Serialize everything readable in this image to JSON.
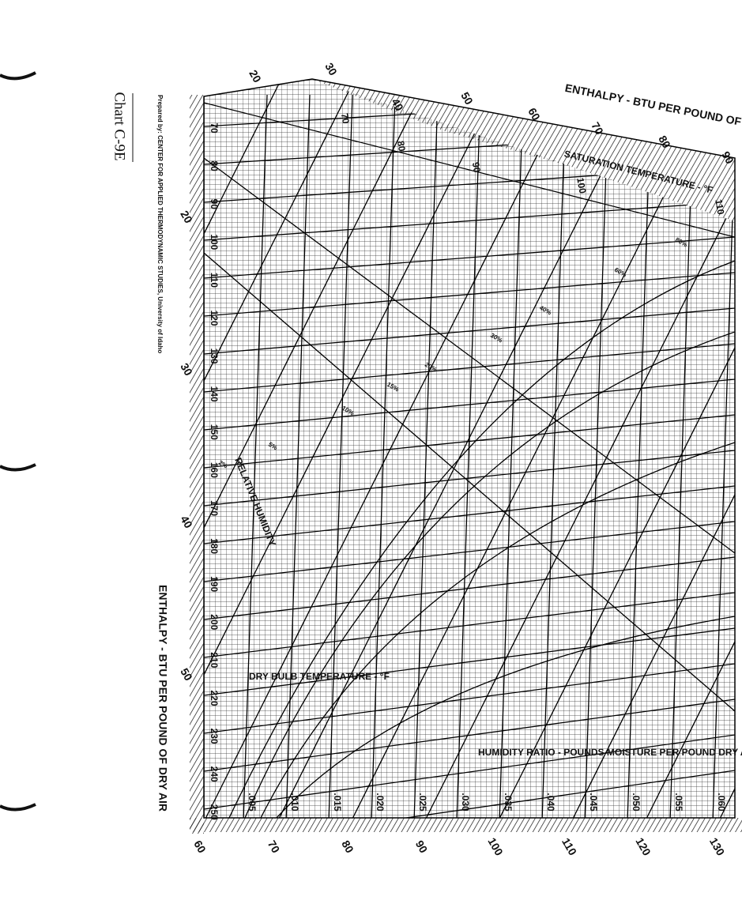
{
  "header": {
    "title": "Chart C-9E",
    "prepared_by": "Prepared by:  CENTER FOR APPLIED THERMODYNAMIC STUDIES, University of Idaho"
  },
  "labels": {
    "enthalpy_top": "ENTHALPY - BTU PER POUND OF",
    "enthalpy_side": "ENTHALPY - BTU PER POUND OF DRY AIR",
    "saturation": "SATURATION TEMPERATURE - °F",
    "relative_humidity": "RELATIVE HUMIDITY",
    "dry_bulb": "DRY BULB TEMPERATURE - °F",
    "humidity_ratio": "HUMIDITY RATIO - POUNDS MOISTURE PER POUND DRY AIR"
  },
  "dry_bulb_ticks": [
    "70",
    "80",
    "90",
    "100",
    "110",
    "120",
    "130",
    "140",
    "150",
    "160",
    "170",
    "180",
    "190",
    "200",
    "210",
    "220",
    "230",
    "240",
    "250"
  ],
  "enthalpy_top_ticks": [
    "20",
    "30",
    "40",
    "50",
    "60",
    "70",
    "80",
    "90"
  ],
  "enthalpy_left_ticks": [
    "20",
    "30",
    "40",
    "50"
  ],
  "enthalpy_bottom_ticks": [
    "60",
    "70",
    "80",
    "90",
    "100",
    "110",
    "120",
    "130"
  ],
  "humidity_ratio_ticks": [
    ".005",
    ".010",
    ".015",
    ".020",
    ".025",
    ".030",
    ".035",
    ".040",
    ".045",
    ".050",
    ".055",
    ".060"
  ],
  "saturation_ticks": [
    "70",
    "80",
    "90",
    "100",
    "110"
  ],
  "relative_humidity_ticks": [
    "2%",
    "5%",
    "10%",
    "15%",
    "20%",
    "30%",
    "40%",
    "60%",
    "80%"
  ]
}
